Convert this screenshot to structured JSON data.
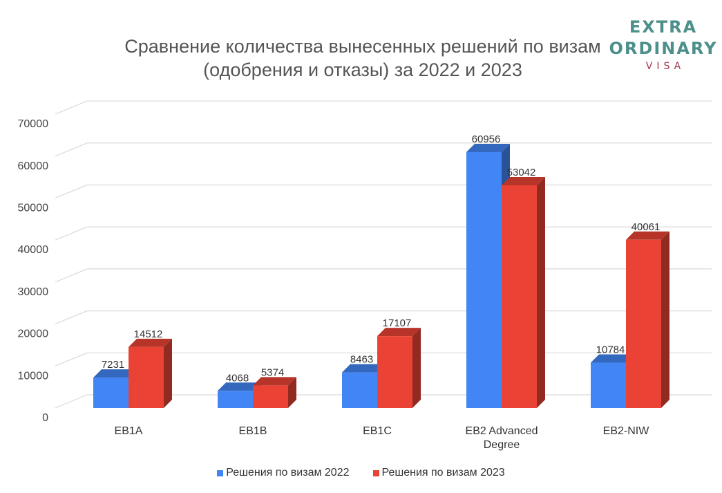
{
  "chart_data": {
    "type": "bar",
    "title": [
      "Сравнение количества вынесенных решений по визам",
      "(одобрения и отказы) за 2022 и 2023"
    ],
    "categories": [
      [
        "EB1A"
      ],
      [
        "EB1B"
      ],
      [
        "EB1C"
      ],
      [
        "EB2 Advanced",
        "Degree"
      ],
      [
        "EB2-NIW"
      ]
    ],
    "series": [
      {
        "name": "Решения по визам 2022",
        "values": [
          7231,
          4068,
          8463,
          60956,
          10784
        ],
        "color": "#4285f4"
      },
      {
        "name": "Решения по визам 2023",
        "values": [
          14512,
          5374,
          17107,
          53042,
          40061
        ],
        "color": "#ea4335"
      }
    ],
    "yticks": [
      0,
      10000,
      20000,
      30000,
      40000,
      50000,
      60000,
      70000
    ],
    "ylim": [
      0,
      70000
    ],
    "grid": true,
    "legend": "bottom",
    "style": "3d-column"
  },
  "logo": {
    "line1": "EXTRA",
    "line2": "ORDINARY",
    "line3": "VISA",
    "color_main": "#4d8f8a",
    "color_sub": "#a3334a"
  }
}
